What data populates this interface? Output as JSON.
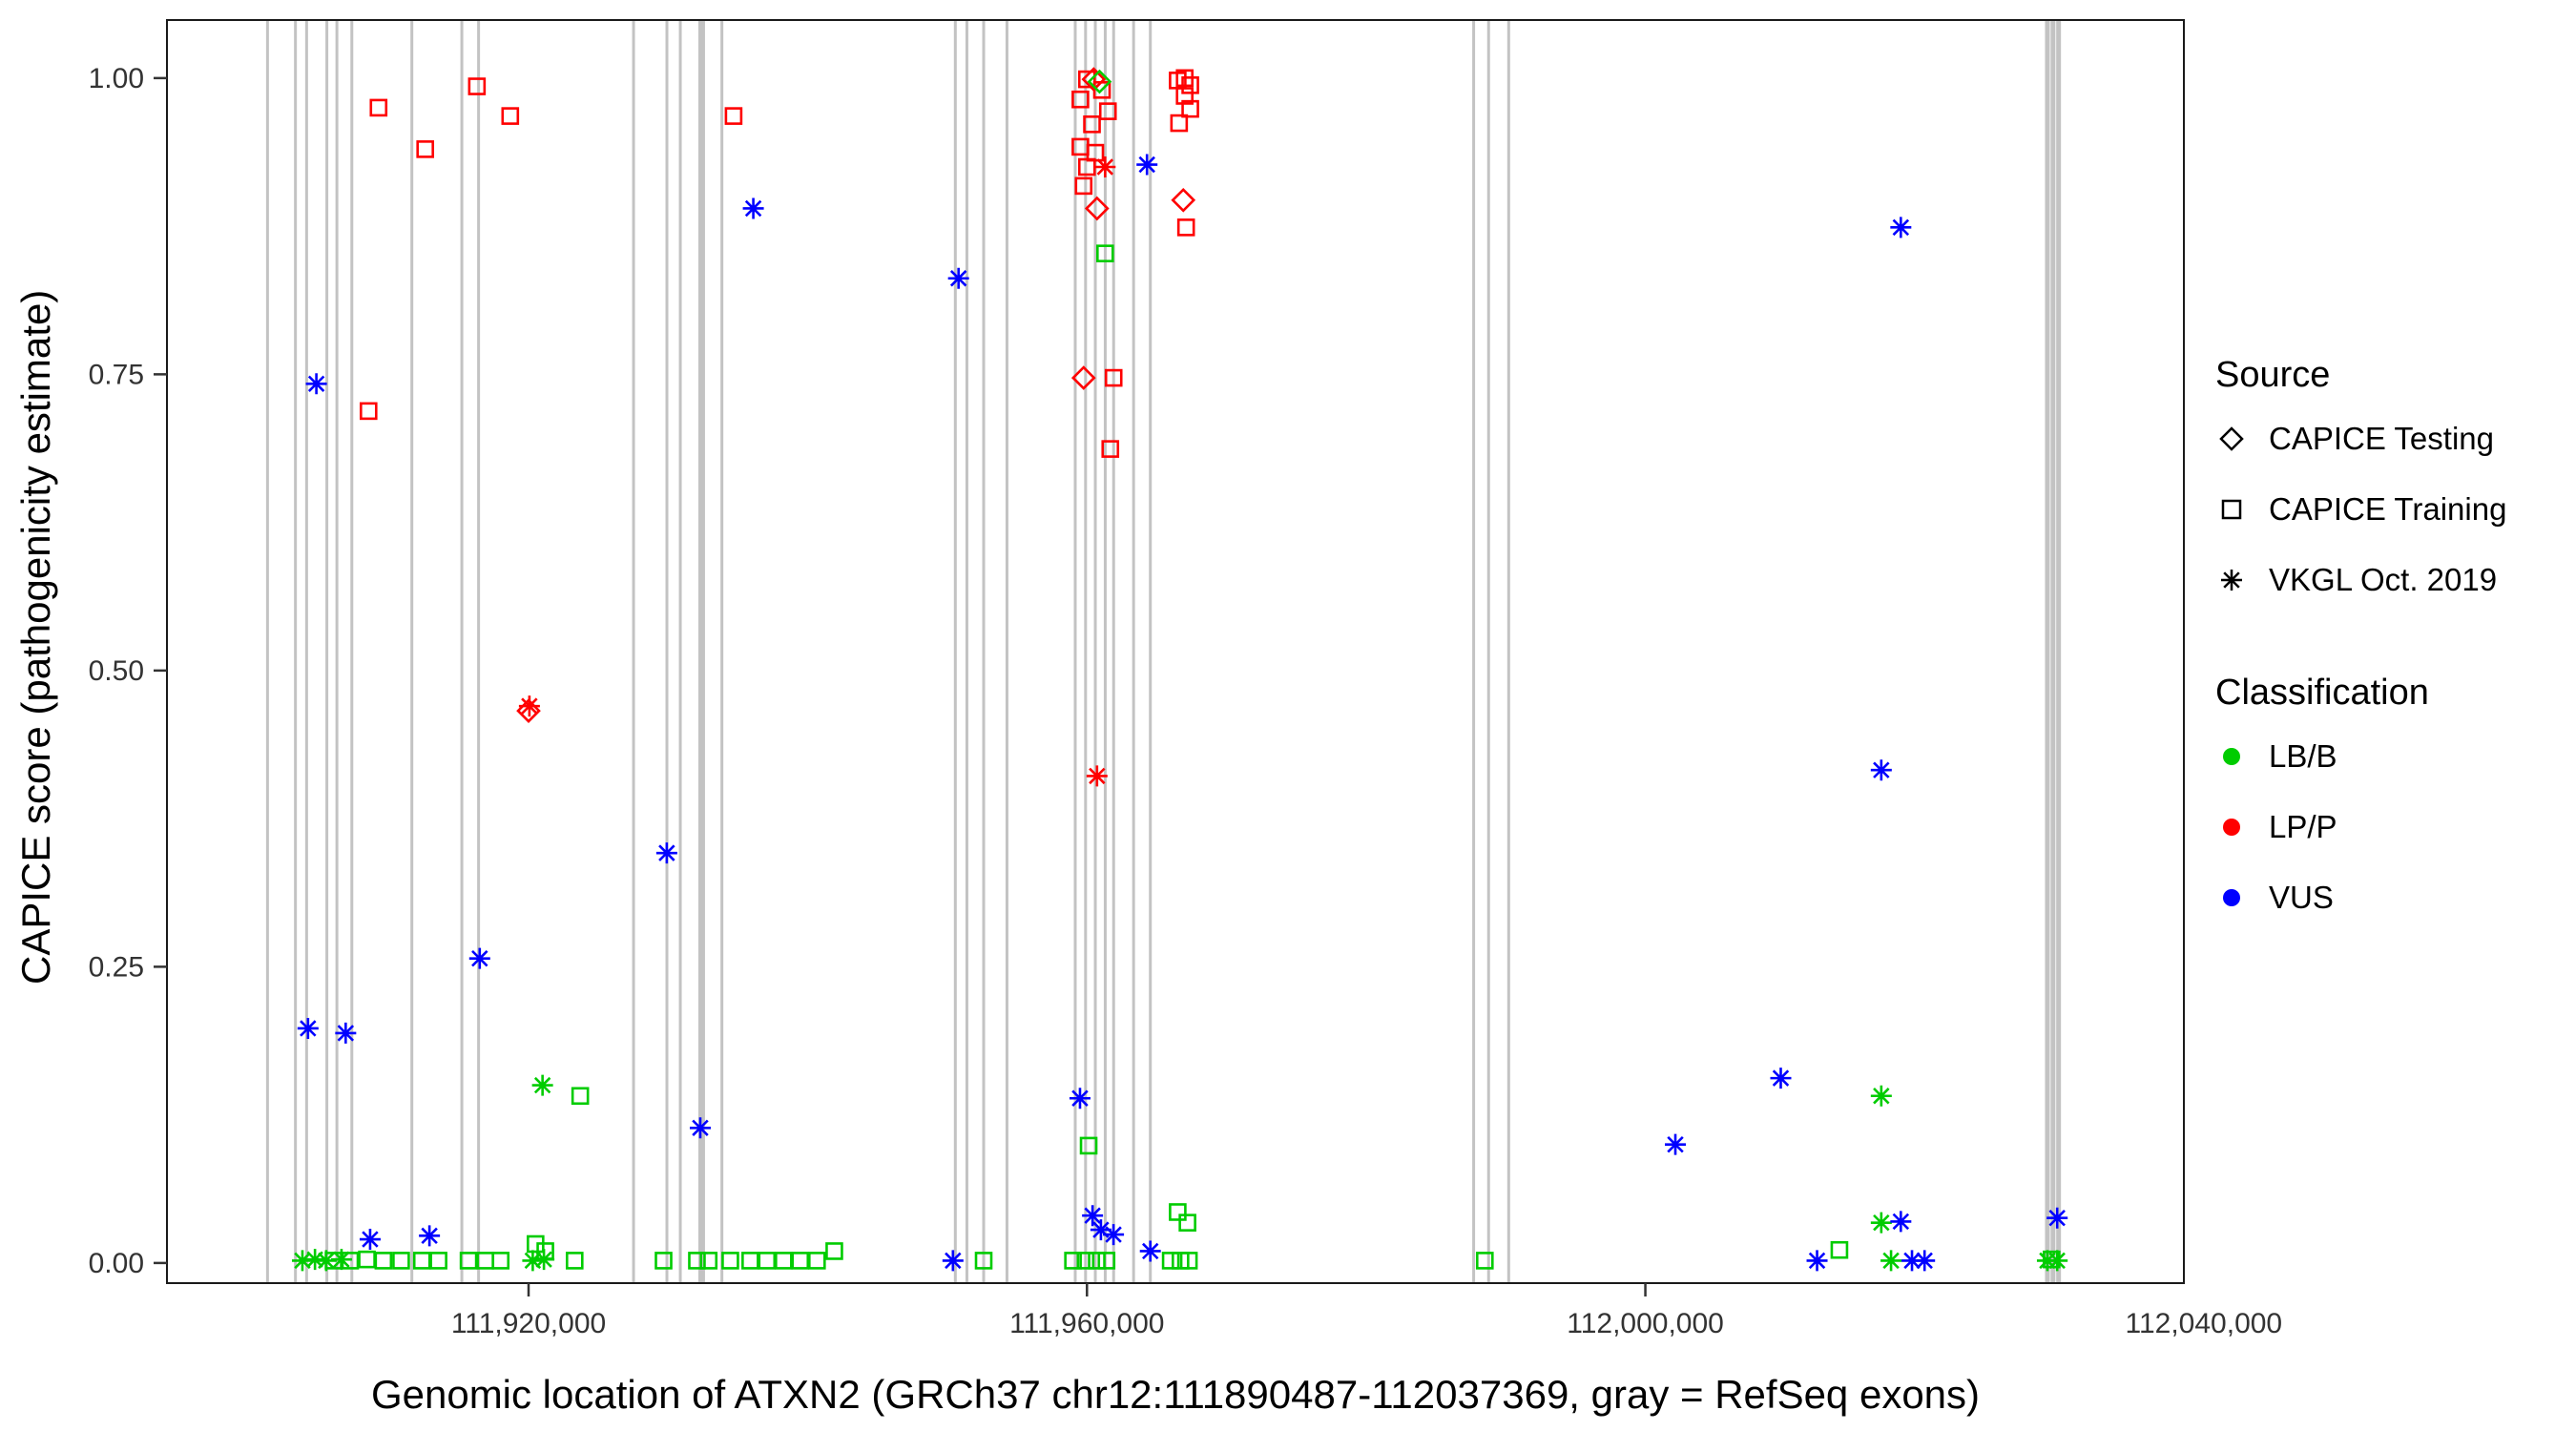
{
  "legend": {
    "source_title": "Source",
    "source_items": [
      {
        "label": "CAPICE Testing",
        "shape": "diamond"
      },
      {
        "label": "CAPICE Training",
        "shape": "square"
      },
      {
        "label": "VKGL Oct. 2019",
        "shape": "asterisk"
      }
    ],
    "class_title": "Classification",
    "class_items": [
      {
        "label": "LB/B",
        "color": "#00CC00"
      },
      {
        "label": "LP/P",
        "color": "#FF0000"
      },
      {
        "label": "VUS",
        "color": "#0000FF"
      }
    ]
  },
  "chart_data": {
    "type": "scatter",
    "title": "",
    "xlabel": "Genomic location of ATXN2 (GRCh37 chr12:111890487-112037369, gray = RefSeq exons)",
    "ylabel": "CAPICE score (pathogenicity estimate)",
    "xlim": [
      111894097,
      112038576
    ],
    "ylim": [
      -0.017,
      1.049
    ],
    "x_ticks": [
      {
        "value": 111920000,
        "label": "111,920,000"
      },
      {
        "value": 111960000,
        "label": "111,960,000"
      },
      {
        "value": 112000000,
        "label": "112,000,000"
      },
      {
        "value": 112040000,
        "label": "112,040,000"
      }
    ],
    "y_ticks": [
      {
        "value": 0.0,
        "label": "0.00"
      },
      {
        "value": 0.25,
        "label": "0.25"
      },
      {
        "value": 0.5,
        "label": "0.50"
      },
      {
        "value": 0.75,
        "label": "0.75"
      },
      {
        "value": 1.0,
        "label": "1.00"
      }
    ],
    "grid": false,
    "legend_position": "right",
    "exon_color": "#C3C3C3",
    "exons": [
      [
        111901300,
        3
      ],
      [
        111903300,
        3
      ],
      [
        111904100,
        3
      ],
      [
        111905550,
        3
      ],
      [
        111906270,
        3
      ],
      [
        111907340,
        3
      ],
      [
        111911640,
        3
      ],
      [
        111915220,
        3
      ],
      [
        111916420,
        3
      ],
      [
        111927520,
        3
      ],
      [
        111929910,
        3
      ],
      [
        111930870,
        3
      ],
      [
        111932400,
        7
      ],
      [
        111933850,
        3
      ],
      [
        111950570,
        3
      ],
      [
        111951400,
        3
      ],
      [
        111952600,
        3
      ],
      [
        111954270,
        3
      ],
      [
        111959160,
        3
      ],
      [
        111959900,
        3
      ],
      [
        111960600,
        3
      ],
      [
        111961310,
        3
      ],
      [
        111961910,
        3
      ],
      [
        111963340,
        3
      ],
      [
        111964540,
        3
      ],
      [
        111987700,
        3
      ],
      [
        111988770,
        3
      ],
      [
        111990210,
        3
      ],
      [
        112028800,
        5
      ],
      [
        112029200,
        5
      ],
      [
        112029600,
        5
      ]
    ],
    "shape_by_source": {
      "CAPICE Testing": "diamond",
      "CAPICE Training": "square",
      "VKGL Oct. 2019": "asterisk"
    },
    "class_colors": {
      "LB/B": "#00CC00",
      "LP/P": "#FF0000",
      "VUS": "#0000FF"
    },
    "points": [
      [
        111908537,
        0.719,
        "square",
        "LP/P"
      ],
      [
        111909254,
        0.975,
        "square",
        "LP/P"
      ],
      [
        111912597,
        0.94,
        "square",
        "LP/P"
      ],
      [
        111916298,
        0.993,
        "square",
        "LP/P"
      ],
      [
        111918687,
        0.968,
        "square",
        "LP/P"
      ],
      [
        111934686,
        0.968,
        "square",
        "LP/P"
      ],
      [
        111959530,
        0.982,
        "square",
        "LP/P"
      ],
      [
        111960000,
        0.999,
        "square",
        "LP/P"
      ],
      [
        111960360,
        0.961,
        "square",
        "LP/P"
      ],
      [
        111959530,
        0.942,
        "square",
        "LP/P"
      ],
      [
        111960000,
        0.925,
        "square",
        "LP/P"
      ],
      [
        111960597,
        0.937,
        "square",
        "LP/P"
      ],
      [
        111959760,
        0.909,
        "square",
        "LP/P"
      ],
      [
        111961075,
        0.99,
        "square",
        "LP/P"
      ],
      [
        111961500,
        0.972,
        "square",
        "LP/P"
      ],
      [
        111961910,
        0.747,
        "square",
        "LP/P"
      ],
      [
        111961672,
        0.687,
        "square",
        "LP/P"
      ],
      [
        111967000,
        1.0,
        "square",
        "LP/P"
      ],
      [
        111966500,
        0.998,
        "square",
        "LP/P"
      ],
      [
        111967400,
        0.994,
        "square",
        "LP/P"
      ],
      [
        111967000,
        0.985,
        "square",
        "LP/P"
      ],
      [
        111967400,
        0.974,
        "square",
        "LP/P"
      ],
      [
        111966600,
        0.962,
        "square",
        "LP/P"
      ],
      [
        111967100,
        0.874,
        "square",
        "LP/P"
      ],
      [
        111960480,
        0.999,
        "diamond",
        "LP/P"
      ],
      [
        111960720,
        0.89,
        "diamond",
        "LP/P"
      ],
      [
        111959760,
        0.747,
        "diamond",
        "LP/P"
      ],
      [
        111920000,
        0.466,
        "diamond",
        "LP/P"
      ],
      [
        111966900,
        0.897,
        "diamond",
        "LP/P"
      ],
      [
        111920060,
        0.47,
        "asterisk",
        "LP/P"
      ],
      [
        111961300,
        0.925,
        "asterisk",
        "LP/P"
      ],
      [
        111960720,
        0.411,
        "asterisk",
        "LP/P"
      ],
      [
        111960900,
        0.997,
        "diamond",
        "LB/B"
      ],
      [
        111923700,
        0.141,
        "square",
        "LB/B"
      ],
      [
        111961300,
        0.852,
        "square",
        "LB/B"
      ],
      [
        111960120,
        0.099,
        "square",
        "LB/B"
      ],
      [
        111920500,
        0.016,
        "square",
        "LB/B"
      ],
      [
        111921200,
        0.01,
        "square",
        "LB/B"
      ],
      [
        111941900,
        0.01,
        "square",
        "LB/B"
      ],
      [
        112013900,
        0.011,
        "square",
        "LB/B"
      ],
      [
        111966500,
        0.043,
        "square",
        "LB/B"
      ],
      [
        111967200,
        0.034,
        "square",
        "LB/B"
      ],
      [
        111906030,
        0.002,
        "square",
        "LB/B"
      ],
      [
        111907220,
        0.002,
        "square",
        "LB/B"
      ],
      [
        111908420,
        0.003,
        "square",
        "LB/B"
      ],
      [
        111909600,
        0.002,
        "square",
        "LB/B"
      ],
      [
        111910870,
        0.002,
        "square",
        "LB/B"
      ],
      [
        111912360,
        0.002,
        "square",
        "LB/B"
      ],
      [
        111913550,
        0.002,
        "square",
        "LB/B"
      ],
      [
        111915700,
        0.002,
        "square",
        "LB/B"
      ],
      [
        111916900,
        0.002,
        "square",
        "LB/B"
      ],
      [
        111918000,
        0.002,
        "square",
        "LB/B"
      ],
      [
        111923300,
        0.002,
        "square",
        "LB/B"
      ],
      [
        111929670,
        0.002,
        "square",
        "LB/B"
      ],
      [
        111932060,
        0.002,
        "square",
        "LB/B"
      ],
      [
        111932900,
        0.002,
        "square",
        "LB/B"
      ],
      [
        111934450,
        0.002,
        "square",
        "LB/B"
      ],
      [
        111935880,
        0.002,
        "square",
        "LB/B"
      ],
      [
        111937070,
        0.002,
        "square",
        "LB/B"
      ],
      [
        111938270,
        0.002,
        "square",
        "LB/B"
      ],
      [
        111939460,
        0.002,
        "square",
        "LB/B"
      ],
      [
        111940660,
        0.002,
        "square",
        "LB/B"
      ],
      [
        111952600,
        0.002,
        "square",
        "LB/B"
      ],
      [
        111988500,
        0.002,
        "square",
        "LB/B"
      ],
      [
        111959000,
        0.002,
        "square",
        "LB/B"
      ],
      [
        111959900,
        0.002,
        "square",
        "LB/B"
      ],
      [
        111960700,
        0.002,
        "square",
        "LB/B"
      ],
      [
        111961400,
        0.002,
        "square",
        "LB/B"
      ],
      [
        111966000,
        0.002,
        "square",
        "LB/B"
      ],
      [
        111966700,
        0.002,
        "square",
        "LB/B"
      ],
      [
        111967300,
        0.002,
        "square",
        "LB/B"
      ],
      [
        112029100,
        0.003,
        "square",
        "LB/B"
      ],
      [
        111921000,
        0.15,
        "asterisk",
        "LB/B"
      ],
      [
        112016900,
        0.141,
        "asterisk",
        "LB/B"
      ],
      [
        112016900,
        0.034,
        "asterisk",
        "LB/B"
      ],
      [
        111903800,
        0.002,
        "asterisk",
        "LB/B"
      ],
      [
        111904700,
        0.003,
        "asterisk",
        "LB/B"
      ],
      [
        111905500,
        0.002,
        "asterisk",
        "LB/B"
      ],
      [
        111906600,
        0.003,
        "asterisk",
        "LB/B"
      ],
      [
        111920300,
        0.002,
        "asterisk",
        "LB/B"
      ],
      [
        111921100,
        0.003,
        "asterisk",
        "LB/B"
      ],
      [
        112017600,
        0.002,
        "asterisk",
        "LB/B"
      ],
      [
        112028800,
        0.002,
        "asterisk",
        "LB/B"
      ],
      [
        112029500,
        0.002,
        "asterisk",
        "LB/B"
      ],
      [
        111904200,
        0.198,
        "asterisk",
        "VUS"
      ],
      [
        111906900,
        0.194,
        "asterisk",
        "VUS"
      ],
      [
        111904800,
        0.742,
        "asterisk",
        "VUS"
      ],
      [
        111908650,
        0.02,
        "asterisk",
        "VUS"
      ],
      [
        111912900,
        0.023,
        "asterisk",
        "VUS"
      ],
      [
        111916500,
        0.257,
        "asterisk",
        "VUS"
      ],
      [
        111929900,
        0.346,
        "asterisk",
        "VUS"
      ],
      [
        111932300,
        0.114,
        "asterisk",
        "VUS"
      ],
      [
        111936100,
        0.89,
        "asterisk",
        "VUS"
      ],
      [
        111950800,
        0.831,
        "asterisk",
        "VUS"
      ],
      [
        111950400,
        0.002,
        "asterisk",
        "VUS"
      ],
      [
        111959500,
        0.139,
        "asterisk",
        "VUS"
      ],
      [
        111960400,
        0.04,
        "asterisk",
        "VUS"
      ],
      [
        111961000,
        0.028,
        "asterisk",
        "VUS"
      ],
      [
        111961900,
        0.024,
        "asterisk",
        "VUS"
      ],
      [
        111964300,
        0.927,
        "asterisk",
        "VUS"
      ],
      [
        111964540,
        0.01,
        "asterisk",
        "VUS"
      ],
      [
        112002150,
        0.1,
        "asterisk",
        "VUS"
      ],
      [
        112009700,
        0.156,
        "asterisk",
        "VUS"
      ],
      [
        112016900,
        0.416,
        "asterisk",
        "VUS"
      ],
      [
        112018300,
        0.874,
        "asterisk",
        "VUS"
      ],
      [
        112012300,
        0.002,
        "asterisk",
        "VUS"
      ],
      [
        112018300,
        0.035,
        "asterisk",
        "VUS"
      ],
      [
        112019100,
        0.002,
        "asterisk",
        "VUS"
      ],
      [
        112020000,
        0.002,
        "asterisk",
        "VUS"
      ],
      [
        112029500,
        0.038,
        "asterisk",
        "VUS"
      ]
    ]
  }
}
